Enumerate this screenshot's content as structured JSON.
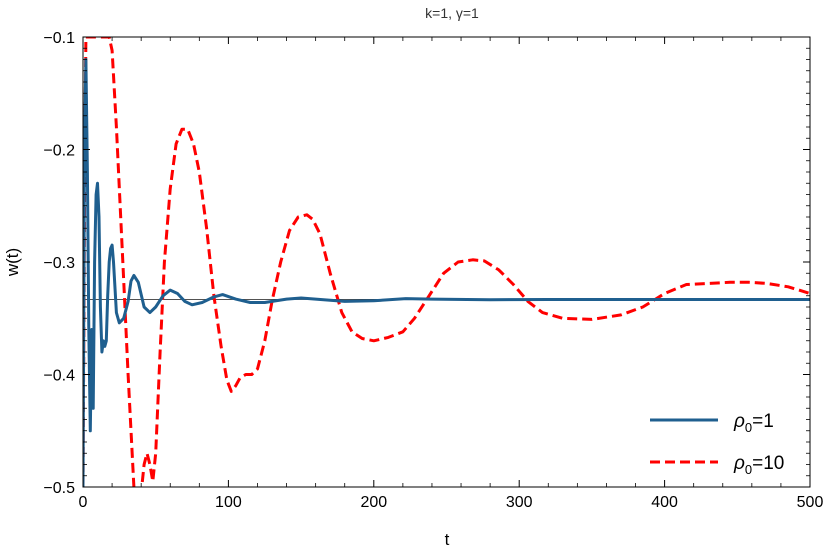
{
  "chart_data": {
    "type": "line",
    "title": "k=1, γ=1",
    "xlabel": "t",
    "ylabel": "w(t)",
    "xlim": [
      0,
      500
    ],
    "ylim": [
      -0.5,
      -0.1
    ],
    "x_ticks": [
      0,
      100,
      200,
      300,
      400,
      500
    ],
    "y_ticks": [
      -0.5,
      -0.4,
      -0.3,
      -0.2,
      -0.1
    ],
    "x_tick_labels": [
      "0",
      "100",
      "200",
      "300",
      "400",
      "500"
    ],
    "y_tick_labels": [
      "−0.5",
      "−0.4",
      "−0.3",
      "−0.2",
      "−0.1"
    ],
    "reference_line": {
      "y": -0.3333,
      "color": "#3a3a3a"
    },
    "legend": {
      "position": "bottom-right"
    },
    "series": [
      {
        "name": "ρ0=1",
        "legend_main": "ρ",
        "legend_sub": "0",
        "legend_rest": "=1",
        "color": "#1f5f8f",
        "dash": "solid",
        "points": [
          [
            0,
            -0.5
          ],
          [
            1,
            -0.2
          ],
          [
            2,
            -0.12
          ],
          [
            3,
            -0.22
          ],
          [
            4,
            -0.36
          ],
          [
            5,
            -0.45
          ],
          [
            6,
            -0.36
          ],
          [
            7,
            -0.43
          ],
          [
            8,
            -0.3
          ],
          [
            9,
            -0.24
          ],
          [
            10,
            -0.23
          ],
          [
            11,
            -0.26
          ],
          [
            12,
            -0.34
          ],
          [
            13,
            -0.38
          ],
          [
            14,
            -0.37
          ],
          [
            15,
            -0.375
          ],
          [
            16,
            -0.37
          ],
          [
            17,
            -0.33
          ],
          [
            18,
            -0.3
          ],
          [
            19,
            -0.288
          ],
          [
            20,
            -0.285
          ],
          [
            21,
            -0.3
          ],
          [
            23,
            -0.345
          ],
          [
            25,
            -0.354
          ],
          [
            28,
            -0.35
          ],
          [
            31,
            -0.335
          ],
          [
            33,
            -0.317
          ],
          [
            35,
            -0.312
          ],
          [
            38,
            -0.318
          ],
          [
            42,
            -0.34
          ],
          [
            46,
            -0.345
          ],
          [
            50,
            -0.34
          ],
          [
            55,
            -0.33
          ],
          [
            60,
            -0.325
          ],
          [
            65,
            -0.328
          ],
          [
            70,
            -0.335
          ],
          [
            75,
            -0.338
          ],
          [
            82,
            -0.336
          ],
          [
            90,
            -0.331
          ],
          [
            96,
            -0.329
          ],
          [
            105,
            -0.333
          ],
          [
            115,
            -0.336
          ],
          [
            125,
            -0.336
          ],
          [
            140,
            -0.333
          ],
          [
            150,
            -0.332
          ],
          [
            160,
            -0.333
          ],
          [
            180,
            -0.335
          ],
          [
            200,
            -0.3345
          ],
          [
            222,
            -0.3325
          ],
          [
            240,
            -0.333
          ],
          [
            280,
            -0.3335
          ],
          [
            320,
            -0.3333
          ],
          [
            360,
            -0.3333
          ],
          [
            420,
            -0.3333
          ],
          [
            500,
            -0.3333
          ]
        ]
      },
      {
        "name": "ρ0=10",
        "legend_main": "ρ",
        "legend_sub": "0",
        "legend_rest": "=10",
        "color": "#ff0000",
        "dash": "dashed",
        "points": [
          [
            0,
            -0.5
          ],
          [
            1,
            -0.25
          ],
          [
            2,
            -0.1
          ],
          [
            18,
            -0.1
          ],
          [
            20,
            -0.112
          ],
          [
            23,
            -0.18
          ],
          [
            27,
            -0.29
          ],
          [
            31,
            -0.4
          ],
          [
            33,
            -0.45
          ],
          [
            35,
            -0.5
          ],
          [
            37,
            -0.52
          ],
          [
            40,
            -0.505
          ],
          [
            42,
            -0.48
          ],
          [
            44,
            -0.47
          ],
          [
            46,
            -0.48
          ],
          [
            48,
            -0.495
          ],
          [
            50,
            -0.47
          ],
          [
            53,
            -0.38
          ],
          [
            56,
            -0.3
          ],
          [
            60,
            -0.235
          ],
          [
            64,
            -0.195
          ],
          [
            68,
            -0.182
          ],
          [
            72,
            -0.182
          ],
          [
            76,
            -0.195
          ],
          [
            80,
            -0.22
          ],
          [
            85,
            -0.27
          ],
          [
            90,
            -0.33
          ],
          [
            95,
            -0.375
          ],
          [
            99,
            -0.405
          ],
          [
            102,
            -0.415
          ],
          [
            105,
            -0.41
          ],
          [
            108,
            -0.403
          ],
          [
            112,
            -0.4
          ],
          [
            116,
            -0.4
          ],
          [
            120,
            -0.395
          ],
          [
            125,
            -0.37
          ],
          [
            130,
            -0.335
          ],
          [
            136,
            -0.3
          ],
          [
            142,
            -0.272
          ],
          [
            148,
            -0.26
          ],
          [
            154,
            -0.258
          ],
          [
            158,
            -0.262
          ],
          [
            163,
            -0.275
          ],
          [
            170,
            -0.31
          ],
          [
            178,
            -0.345
          ],
          [
            185,
            -0.362
          ],
          [
            192,
            -0.368
          ],
          [
            200,
            -0.37
          ],
          [
            210,
            -0.367
          ],
          [
            220,
            -0.362
          ],
          [
            228,
            -0.35
          ],
          [
            238,
            -0.33
          ],
          [
            248,
            -0.31
          ],
          [
            258,
            -0.3
          ],
          [
            268,
            -0.298
          ],
          [
            276,
            -0.299
          ],
          [
            286,
            -0.307
          ],
          [
            296,
            -0.32
          ],
          [
            306,
            -0.335
          ],
          [
            316,
            -0.345
          ],
          [
            330,
            -0.35
          ],
          [
            350,
            -0.351
          ],
          [
            370,
            -0.347
          ],
          [
            385,
            -0.34
          ],
          [
            400,
            -0.328
          ],
          [
            415,
            -0.32
          ],
          [
            430,
            -0.319
          ],
          [
            445,
            -0.318
          ],
          [
            458,
            -0.318
          ],
          [
            470,
            -0.319
          ],
          [
            485,
            -0.322
          ],
          [
            500,
            -0.328
          ]
        ]
      }
    ]
  }
}
